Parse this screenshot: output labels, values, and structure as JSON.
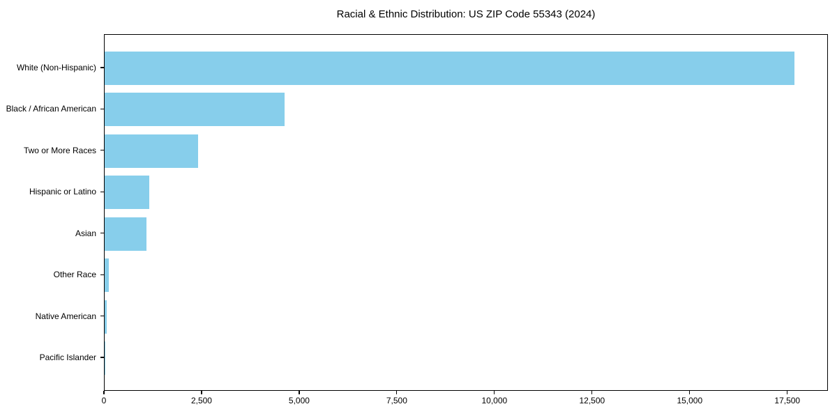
{
  "chart_data": {
    "type": "bar",
    "orientation": "horizontal",
    "title": "Racial & Ethnic Distribution: US ZIP Code 55343 (2024)",
    "categories": [
      "White (Non-Hispanic)",
      "Black / African American",
      "Two or More Races",
      "Hispanic or Latino",
      "Asian",
      "Other Race",
      "Native American",
      "Pacific Islander"
    ],
    "values": [
      17660,
      4610,
      2400,
      1145,
      1070,
      110,
      50,
      10
    ],
    "xlabel": "",
    "ylabel": "",
    "xlim": [
      0,
      18540
    ],
    "x_ticks": [
      0,
      2500,
      5000,
      7500,
      10000,
      12500,
      15000,
      17500
    ],
    "x_tick_labels": [
      "0",
      "2,500",
      "5,000",
      "7,500",
      "10,000",
      "12,500",
      "15,000",
      "17,500"
    ],
    "bar_color": "#87CEEB",
    "grid": false,
    "legend": "none",
    "colors": {
      "spine": "#000000",
      "text": "#000000",
      "background": "#FFFFFF"
    }
  }
}
